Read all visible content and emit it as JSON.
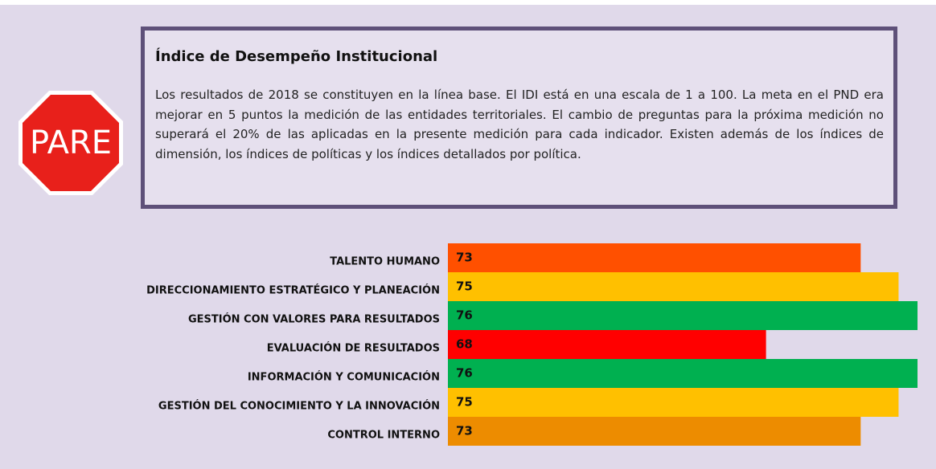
{
  "notice": {
    "sign": "PARE",
    "title": "Índice de Desempeño Institucional",
    "body": "Los resultados de 2018 se constituyen en la línea base. El IDI está en una escala de 1 a 100. La meta en el PND era mejorar en 5 puntos la medición de las entidades territoriales. El cambio de preguntas para la próxima medición no superará el 20% de las aplicadas en la presente medición para cada indicador. Existen además de los índices de dimensión, los índices de políticas y los índices detallados por política."
  },
  "chart_data": {
    "type": "hbar",
    "categories": [
      "TALENTO HUMANO",
      "DIRECCIONAMIENTO ESTRATÉGICO Y PLANEACIÓN",
      "GESTIÓN CON VALORES PARA RESULTADOS",
      "EVALUACIÓN DE RESULTADOS",
      "INFORMACIÓN Y COMUNICACIÓN",
      "GESTIÓN DEL CONOCIMIENTO Y LA INNOVACIÓN",
      "CONTROL INTERNO"
    ],
    "values": [
      73,
      75,
      76,
      68,
      76,
      75,
      73
    ],
    "colors": [
      "#ff5000",
      "#ffc000",
      "#00b050",
      "#ff0000",
      "#00b050",
      "#ffc000",
      "#ed8c00"
    ],
    "xlim": [
      51.2,
      76
    ]
  }
}
